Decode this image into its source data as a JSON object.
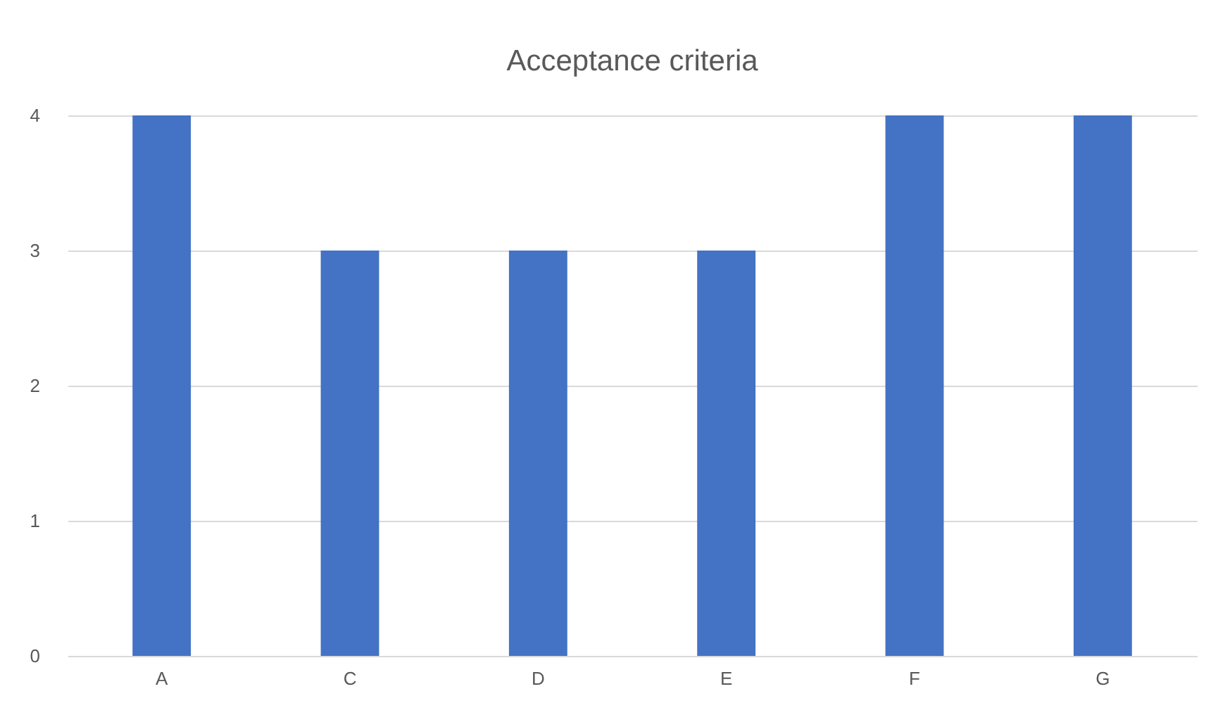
{
  "chart_data": {
    "type": "bar",
    "title": "Acceptance criteria",
    "categories": [
      "A",
      "C",
      "D",
      "E",
      "F",
      "G"
    ],
    "values": [
      4,
      3,
      3,
      3,
      4,
      4
    ],
    "color": "#4472c4",
    "ylim": [
      0,
      4
    ],
    "yticks": [
      0,
      1,
      2,
      3,
      4
    ],
    "grid": "y"
  }
}
